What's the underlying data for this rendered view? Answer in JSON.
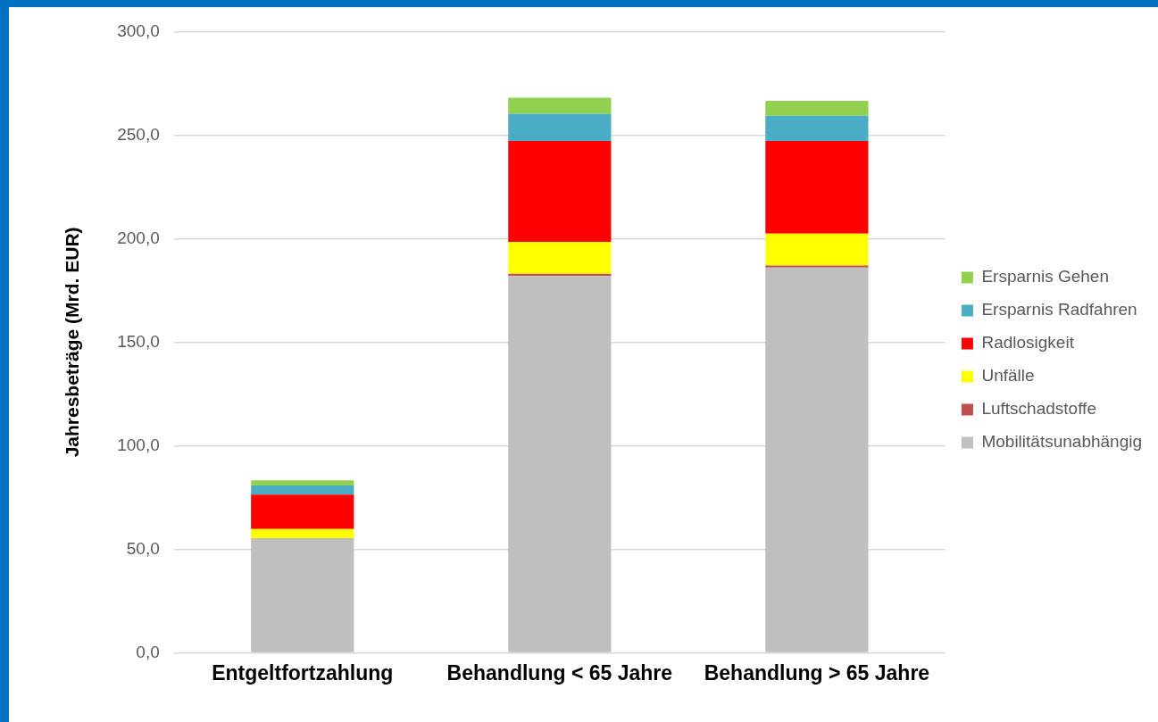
{
  "chart_data": {
    "type": "bar",
    "stacked": true,
    "ylabel": "Jahresbeträge (Mrd. EUR)",
    "categories": [
      "Entgeltfortzahlung",
      "Behandlung < 65 Jahre",
      "Behandlung > 65 Jahre"
    ],
    "series": [
      {
        "name": "Mobilitätsunabhängig",
        "color": "#bfbfbf",
        "values": [
          55.3,
          182.0,
          186.1
        ]
      },
      {
        "name": "Luftschadstoffe",
        "color": "#c0504d",
        "values": [
          null,
          1.0,
          0.9
        ]
      },
      {
        "name": "Unfälle",
        "color": "#ffff00",
        "values": [
          4.5,
          15.4,
          15.4
        ]
      },
      {
        "name": "Radlosigkeit",
        "color": "#ff0000",
        "values": [
          16.6,
          48.8,
          44.8
        ]
      },
      {
        "name": "Ersparnis Radfahren",
        "color": "#4bacc6",
        "values": [
          4.4,
          13.1,
          12.1
        ]
      },
      {
        "name": "Ersparnis Gehen",
        "color": "#92d050",
        "values": [
          2.5,
          7.8,
          7.2
        ]
      }
    ],
    "ylim": [
      0,
      300
    ],
    "yticks": [
      {
        "value": 0,
        "label": "0,0"
      },
      {
        "value": 50,
        "label": "50,0"
      },
      {
        "value": 100,
        "label": "100,0"
      },
      {
        "value": 150,
        "label": "150,0"
      },
      {
        "value": 200,
        "label": "200,0"
      },
      {
        "value": 250,
        "label": "250,0"
      },
      {
        "value": 300,
        "label": "300,0"
      }
    ],
    "grid": "y",
    "legend": "right"
  }
}
